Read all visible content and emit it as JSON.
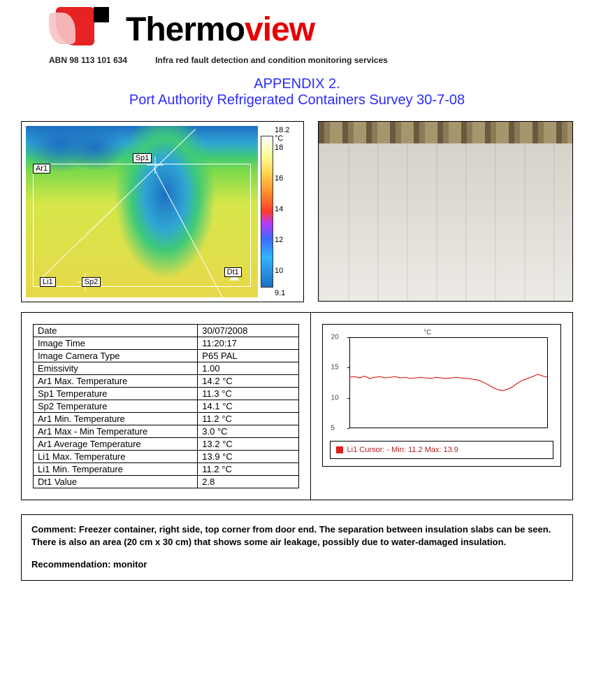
{
  "brand": {
    "part1": "Thermo",
    "part2": "view"
  },
  "abn": "ABN 98 113 101 634",
  "tagline": "Infra red fault detection and condition monitoring services",
  "appendix_line1": "APPENDIX 2.",
  "appendix_line2": "Port Authority Refrigerated Containers Survey 30-7-08",
  "thermal": {
    "markers": {
      "ar1": "Ar1",
      "sp1": "Sp1",
      "sp2": "Sp2",
      "li1": "Li1",
      "dt1": "Dt1"
    },
    "scale_top": "18.2 °C",
    "scale_bottom": "9.1",
    "ticks": [
      "18",
      "16",
      "14",
      "12",
      "10"
    ]
  },
  "table": {
    "rows": [
      [
        "Date",
        "30/07/2008"
      ],
      [
        "Image Time",
        "11:20:17"
      ],
      [
        "Image Camera Type",
        "P65 PAL"
      ],
      [
        "Emissivity",
        "1.00"
      ],
      [
        "Ar1 Max. Temperature",
        "14.2 °C"
      ],
      [
        "Sp1 Temperature",
        "11.3 °C"
      ],
      [
        "Sp2 Temperature",
        "14.1 °C"
      ],
      [
        "Ar1 Min. Temperature",
        "11.2 °C"
      ],
      [
        "Ar1 Max - Min Temperature",
        "3.0 °C"
      ],
      [
        "Ar1 Average Temperature",
        "13.2 °C"
      ],
      [
        "Li1 Max. Temperature",
        "13.9 °C"
      ],
      [
        "Li1 Min. Temperature",
        "11.2 °C"
      ],
      [
        "Dt1 Value",
        "2.8"
      ]
    ]
  },
  "chart": {
    "unit": "°C",
    "ylim": [
      5,
      20
    ],
    "yticks": [
      5,
      10,
      15,
      20
    ],
    "line_color": "#e02020",
    "points": [
      13.4,
      13.5,
      13.3,
      13.6,
      13.2,
      13.4,
      13.5,
      13.3,
      13.4,
      13.5,
      13.3,
      13.4,
      13.2,
      13.3,
      13.4,
      13.3,
      13.2,
      13.4,
      13.3,
      13.2,
      13.3,
      13.4,
      13.3,
      13.2,
      13.1,
      13.0,
      12.7,
      12.3,
      11.8,
      11.4,
      11.2,
      11.4,
      11.8,
      12.4,
      12.9,
      13.2,
      13.5,
      13.9,
      13.6,
      13.4
    ],
    "legend": "Li1 Cursor: - Min: 11.2 Max: 13.9"
  },
  "comment": "Comment: Freezer container, right side, top corner from door end. The separation between insulation slabs can be seen. There is also an area (20 cm x 30 cm) that shows some air leakage, possibly due to water-damaged insulation.",
  "recommendation": "Recommendation: monitor"
}
